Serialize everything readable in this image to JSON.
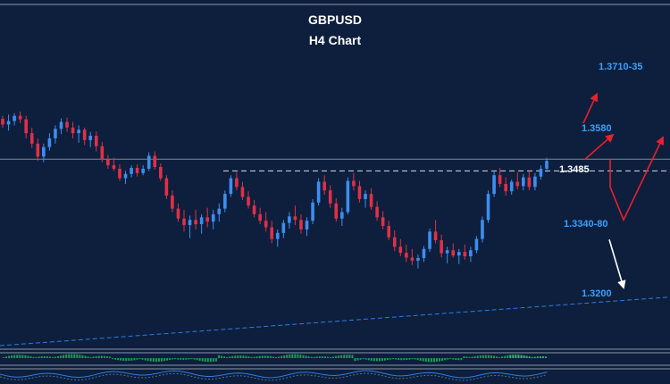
{
  "chart_data": {
    "type": "candlestick",
    "title": "GBPUSD",
    "subtitle": "H4  Chart",
    "ylim": [
      1.308,
      1.3735
    ],
    "ohlc": [
      [
        1.3605,
        1.3612,
        1.3585,
        1.3592
      ],
      [
        1.3592,
        1.3615,
        1.3578,
        1.36
      ],
      [
        1.36,
        1.3618,
        1.359,
        1.3612
      ],
      [
        1.3612,
        1.3622,
        1.3595,
        1.3604
      ],
      [
        1.3604,
        1.3612,
        1.356,
        1.3572
      ],
      [
        1.3572,
        1.3585,
        1.3538,
        1.3548
      ],
      [
        1.3548,
        1.356,
        1.3508,
        1.3518
      ],
      [
        1.3518,
        1.3548,
        1.3505,
        1.354
      ],
      [
        1.354,
        1.3572,
        1.3532,
        1.356
      ],
      [
        1.356,
        1.359,
        1.3548,
        1.3582
      ],
      [
        1.3582,
        1.3606,
        1.357,
        1.3598
      ],
      [
        1.3598,
        1.3608,
        1.3575,
        1.3585
      ],
      [
        1.3585,
        1.3598,
        1.356,
        1.3572
      ],
      [
        1.3572,
        1.359,
        1.355,
        1.358
      ],
      [
        1.358,
        1.3585,
        1.3545,
        1.3556
      ],
      [
        1.3556,
        1.3575,
        1.354,
        1.3566
      ],
      [
        1.3566,
        1.3576,
        1.353,
        1.3542
      ],
      [
        1.3542,
        1.3552,
        1.3505,
        1.3512
      ],
      [
        1.3512,
        1.3522,
        1.349,
        1.3498
      ],
      [
        1.3498,
        1.3515,
        1.3485,
        1.349
      ],
      [
        1.349,
        1.35,
        1.3462,
        1.3468
      ],
      [
        1.3468,
        1.3485,
        1.3455,
        1.3478
      ],
      [
        1.3478,
        1.3498,
        1.347,
        1.3492
      ],
      [
        1.3492,
        1.35,
        1.3472,
        1.348
      ],
      [
        1.348,
        1.3498,
        1.3475,
        1.349
      ],
      [
        1.349,
        1.3528,
        1.3485,
        1.352
      ],
      [
        1.352,
        1.353,
        1.3488,
        1.3494
      ],
      [
        1.3494,
        1.3502,
        1.3462,
        1.3468
      ],
      [
        1.3468,
        1.3475,
        1.342,
        1.3428
      ],
      [
        1.3428,
        1.344,
        1.339,
        1.3398
      ],
      [
        1.3398,
        1.341,
        1.3368,
        1.3375
      ],
      [
        1.3375,
        1.3395,
        1.3345,
        1.336
      ],
      [
        1.336,
        1.3382,
        1.333,
        1.3372
      ],
      [
        1.3372,
        1.3395,
        1.335,
        1.3362
      ],
      [
        1.3362,
        1.3385,
        1.334,
        1.3378
      ],
      [
        1.3378,
        1.34,
        1.3355,
        1.3368
      ],
      [
        1.3368,
        1.3395,
        1.335,
        1.3385
      ],
      [
        1.3385,
        1.341,
        1.3368,
        1.3398
      ],
      [
        1.3398,
        1.344,
        1.339,
        1.3432
      ],
      [
        1.3432,
        1.3475,
        1.3425,
        1.3468
      ],
      [
        1.3468,
        1.3482,
        1.344,
        1.3448
      ],
      [
        1.3448,
        1.346,
        1.3418,
        1.3425
      ],
      [
        1.3425,
        1.3438,
        1.3398,
        1.3405
      ],
      [
        1.3405,
        1.3418,
        1.3378,
        1.3385
      ],
      [
        1.3385,
        1.34,
        1.3362,
        1.337
      ],
      [
        1.337,
        1.339,
        1.3345,
        1.3355
      ],
      [
        1.3355,
        1.337,
        1.3318,
        1.3328
      ],
      [
        1.3328,
        1.335,
        1.331,
        1.3342
      ],
      [
        1.3342,
        1.3372,
        1.333,
        1.3365
      ],
      [
        1.3365,
        1.339,
        1.3352,
        1.338
      ],
      [
        1.338,
        1.3405,
        1.336,
        1.3372
      ],
      [
        1.3372,
        1.3385,
        1.334,
        1.335
      ],
      [
        1.335,
        1.3378,
        1.3335,
        1.337
      ],
      [
        1.337,
        1.342,
        1.3362,
        1.3412
      ],
      [
        1.3412,
        1.3468,
        1.3405,
        1.346
      ],
      [
        1.346,
        1.3475,
        1.343,
        1.344
      ],
      [
        1.344,
        1.3452,
        1.34,
        1.341
      ],
      [
        1.341,
        1.3422,
        1.3368,
        1.3375
      ],
      [
        1.3375,
        1.34,
        1.3358,
        1.339
      ],
      [
        1.339,
        1.347,
        1.3385,
        1.3462
      ],
      [
        1.3462,
        1.348,
        1.344,
        1.345
      ],
      [
        1.345,
        1.3462,
        1.3412,
        1.342
      ],
      [
        1.342,
        1.344,
        1.34,
        1.3432
      ],
      [
        1.3432,
        1.3445,
        1.3395,
        1.3402
      ],
      [
        1.3402,
        1.3415,
        1.337,
        1.3378
      ],
      [
        1.3378,
        1.3392,
        1.335,
        1.3358
      ],
      [
        1.3358,
        1.337,
        1.3325,
        1.3332
      ],
      [
        1.3332,
        1.3348,
        1.33,
        1.331
      ],
      [
        1.331,
        1.3328,
        1.3288,
        1.3296
      ],
      [
        1.3296,
        1.3315,
        1.3275,
        1.3285
      ],
      [
        1.3285,
        1.3305,
        1.3268,
        1.3278
      ],
      [
        1.3278,
        1.3292,
        1.326,
        1.3284
      ],
      [
        1.3284,
        1.3312,
        1.3275,
        1.3305
      ],
      [
        1.3305,
        1.3352,
        1.3298,
        1.3345
      ],
      [
        1.3345,
        1.3372,
        1.3318,
        1.3325
      ],
      [
        1.3325,
        1.3338,
        1.3285,
        1.3295
      ],
      [
        1.3295,
        1.331,
        1.3272,
        1.3302
      ],
      [
        1.3302,
        1.3318,
        1.3285,
        1.329
      ],
      [
        1.329,
        1.3305,
        1.327,
        1.3298
      ],
      [
        1.3298,
        1.3315,
        1.328,
        1.3288
      ],
      [
        1.3288,
        1.331,
        1.3275,
        1.3302
      ],
      [
        1.3302,
        1.3335,
        1.3295,
        1.3328
      ],
      [
        1.3328,
        1.338,
        1.332,
        1.3372
      ],
      [
        1.3372,
        1.344,
        1.3365,
        1.3432
      ],
      [
        1.3432,
        1.3485,
        1.3425,
        1.3475
      ],
      [
        1.3475,
        1.3492,
        1.3448,
        1.3455
      ],
      [
        1.3455,
        1.347,
        1.3428,
        1.3438
      ],
      [
        1.3438,
        1.3465,
        1.343,
        1.346
      ],
      [
        1.346,
        1.3482,
        1.3442,
        1.345
      ],
      [
        1.345,
        1.3478,
        1.344,
        1.347
      ],
      [
        1.347,
        1.3485,
        1.344,
        1.3448
      ],
      [
        1.3448,
        1.348,
        1.344,
        1.3472
      ],
      [
        1.3472,
        1.3498,
        1.3465,
        1.349
      ],
      [
        1.349,
        1.3515,
        1.3482,
        1.3508
      ]
    ],
    "colors": {
      "up": "#3d8ef0",
      "down": "#e03048",
      "background": "#0d1f3c",
      "forecast_up": "#e8202e",
      "forecast_down": "#ffffff",
      "level_text": "#3aa0ff"
    },
    "levels": [
      {
        "label": "1.3710-35",
        "value": 1.37225
      },
      {
        "label": "1.3580",
        "value": 1.358
      },
      {
        "label": "1.3485",
        "value": 1.3485,
        "style": "dashed"
      },
      {
        "label": "1.3340-80",
        "value": 1.336
      },
      {
        "label": "1.3200",
        "value": 1.32
      }
    ],
    "horizontal_line": 1.3512,
    "trendline": {
      "from": [
        0,
        1.3082
      ],
      "to": [
        1,
        1.3194
      ]
    },
    "forecast_paths": [
      [
        1.3512,
        1.3568
      ],
      [
        1.3512,
        1.3448
      ],
      [
        1.3448,
        1.3372
      ],
      [
        1.3372,
        1.3562
      ],
      [
        1.3595,
        1.3662
      ],
      [
        1.3372,
        1.3318
      ],
      [
        1.3318,
        1.3216
      ]
    ],
    "grid": false
  }
}
